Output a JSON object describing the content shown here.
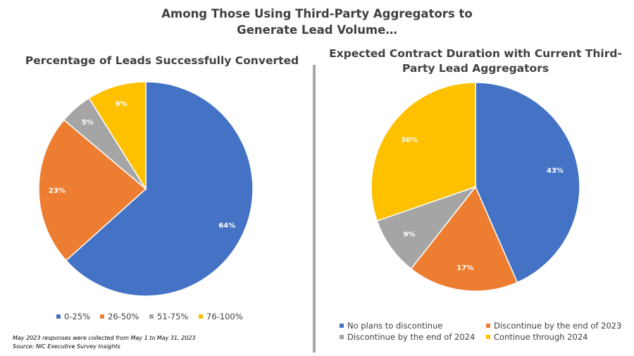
{
  "main_title": {
    "line1": "Among Those Using Third-Party Aggregators to",
    "line2": "Generate Lead Volume…"
  },
  "footnote": {
    "line1": "May 2023 responses were collected from May 1 to May 31, 2023",
    "line2": "Source: NIC Executive Survey Insights"
  },
  "colors": {
    "blue": "#4472c4",
    "orange": "#ed7d31",
    "gray": "#a5a5a5",
    "gold": "#ffc000"
  },
  "chart_data": [
    {
      "type": "pie",
      "title": "Percentage of Leads Successfully Converted",
      "legend_position": "bottom",
      "slices": [
        {
          "label": "0-25%",
          "value": 64,
          "display": "64%",
          "color": "#4472c4"
        },
        {
          "label": "26-50%",
          "value": 23,
          "display": "23%",
          "color": "#ed7d31"
        },
        {
          "label": "51-75%",
          "value": 5,
          "display": "5%",
          "color": "#a5a5a5"
        },
        {
          "label": "76-100%",
          "value": 9,
          "display": "9%",
          "color": "#ffc000"
        }
      ]
    },
    {
      "type": "pie",
      "title_line1": "Expected Contract Duration with Current Third-",
      "title_line2": "Party Lead Aggregators",
      "legend_position": "bottom",
      "slices": [
        {
          "label": "No plans to discontinue",
          "value": 43,
          "display": "43%",
          "color": "#4472c4"
        },
        {
          "label": "Discontinue by the end of 2023",
          "value": 17,
          "display": "17%",
          "color": "#ed7d31"
        },
        {
          "label": "Discontinue by the end of 2024",
          "value": 9,
          "display": "9%",
          "color": "#a5a5a5"
        },
        {
          "label": "Continue through 2024",
          "value": 30,
          "display": "30%",
          "color": "#ffc000"
        }
      ]
    }
  ]
}
